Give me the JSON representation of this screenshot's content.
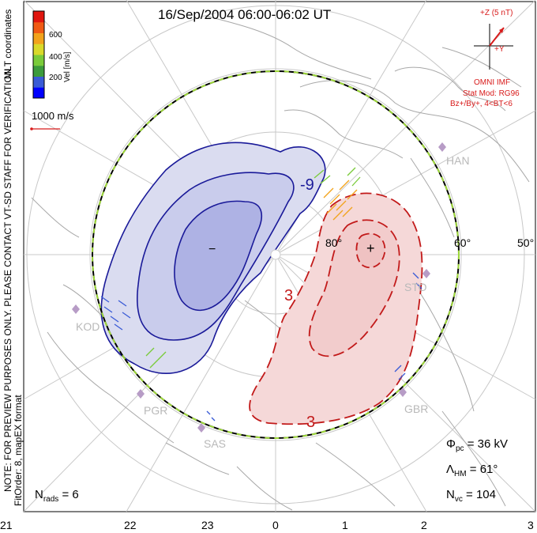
{
  "title": "16/Sep/2004 06:00-06:02 UT",
  "side_labels": {
    "coords": "MLT coordinates",
    "notice": "NOTE: FOR PREVIEW PURPOSES ONLY. PLEASE CONTACT VT-SD STAFF FOR VERIFICATION.",
    "fit": "FitOrder: 8, mapEX format"
  },
  "colorbar": {
    "label": "Vel [m/s]",
    "ticks": [
      "600",
      "400",
      "200"
    ],
    "colors": [
      "#0000ff",
      "#3a5bd6",
      "#3c9b3c",
      "#7acb3a",
      "#d9d92a",
      "#f2a31c",
      "#f05a14",
      "#e0160f"
    ]
  },
  "vector_scale": "1000 m/s",
  "imf": {
    "z_label": "+Z (5 nT)",
    "y_label": "+Y",
    "title": "OMNI IMF",
    "model": "Stat Mod: RG96",
    "condition": "Bz+/By+, 4<BT<6"
  },
  "latitude_labels": [
    "60°",
    "50°",
    "80°"
  ],
  "contour_labels": {
    "negative": "-9",
    "positive_a": "3",
    "positive_b": "3"
  },
  "extrema_marks": {
    "min": "−",
    "max": "+"
  },
  "stations": [
    "HAN",
    "KOD",
    "PGR",
    "SAS",
    "GBR",
    "STO"
  ],
  "stats": {
    "phi_sym": "Φ",
    "phi_sub": "pc",
    "phi_val": "= 36 kV",
    "lam_sym": "Λ",
    "lam_sub": "HM",
    "lam_val": "= 61°",
    "nvc_sym": "N",
    "nvc_sub": "vc",
    "nvc_val": "= 104",
    "nrads_sym": "N",
    "nrads_sub": "rads",
    "nrads_val": "= 6"
  },
  "mlt_ticks": [
    "21",
    "22",
    "23",
    "0",
    "1",
    "2",
    "3"
  ]
}
